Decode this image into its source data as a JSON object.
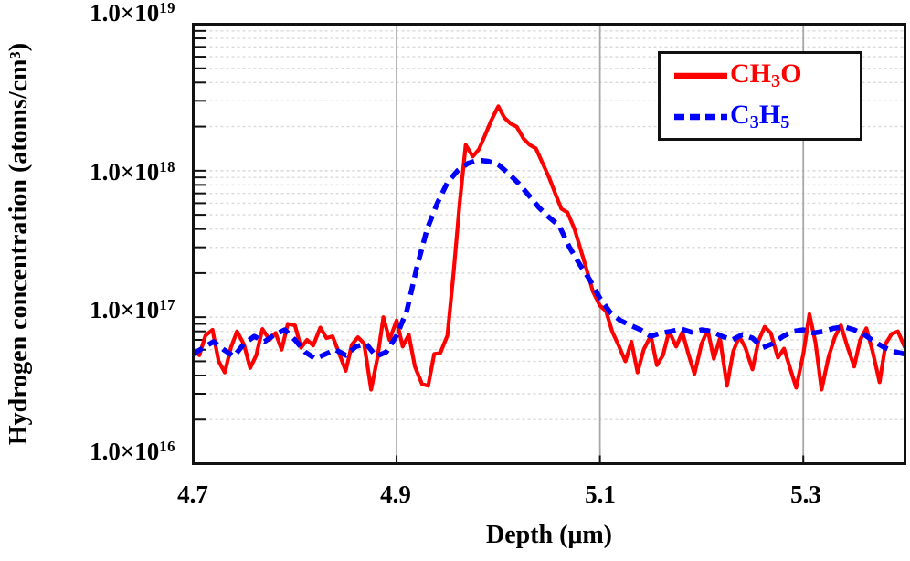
{
  "figure": {
    "type": "sims-depth-profile-chart",
    "background": "#ffffff",
    "y_axis": {
      "title": "Hydrogen concentration (atoms/cm³)",
      "scale": "log",
      "tick_labels": [
        {
          "mantissa": "1.0×10",
          "exp": "19"
        },
        {
          "mantissa": "1.0×10",
          "exp": "18"
        },
        {
          "mantissa": "1.0×10",
          "exp": "17"
        },
        {
          "mantissa": "1.0×10",
          "exp": "16"
        }
      ]
    },
    "x_axis": {
      "title": "Depth (μm)",
      "tick_labels": [
        "4.7",
        "4.9",
        "5.1",
        "5.3"
      ]
    },
    "legend": {
      "entries": [
        {
          "name": "CH3O",
          "segments": [
            {
              "t": "CH"
            },
            {
              "t": "3",
              "sub": true
            },
            {
              "t": "O"
            }
          ],
          "color": "#ff0000",
          "line_style": "solid"
        },
        {
          "name": "C3H5",
          "segments": [
            {
              "t": "C"
            },
            {
              "t": "3",
              "sub": true
            },
            {
              "t": "H"
            },
            {
              "t": "5",
              "sub": true
            }
          ],
          "color": "#0000ff",
          "line_style": "dashed"
        }
      ]
    },
    "colors": {
      "frame": "#111111",
      "grid_major": "#a8a8a8",
      "grid_minor": "#d9d9d9",
      "tick": "#111111"
    }
  },
  "chart_data": {
    "type": "line",
    "title": "",
    "xlabel": "Depth (μm)",
    "ylabel": "Hydrogen concentration (atoms/cm³)",
    "xscale": "linear",
    "yscale": "log",
    "xlim": [
      4.7,
      5.4
    ],
    "ylim": [
      1e+16,
      1e+19
    ],
    "x_major_ticks": [
      4.7,
      4.9,
      5.1,
      5.3
    ],
    "grid": true,
    "legend_position": "top-right",
    "series": [
      {
        "name": "CH3O",
        "display": "CH₃O",
        "color": "#ff0000",
        "line_style": "solid",
        "stroke_width": 4.2,
        "peak": {
          "x": 5.0,
          "y": 2.75e+18
        },
        "points": [
          [
            4.7,
            6e+16
          ],
          [
            4.706,
            5.5e+16
          ],
          [
            4.712,
            7.5e+16
          ],
          [
            4.719,
            8.2e+16
          ],
          [
            4.725,
            5e+16
          ],
          [
            4.731,
            4.2e+16
          ],
          [
            4.737,
            6.2e+16
          ],
          [
            4.743,
            8e+16
          ],
          [
            4.75,
            6.5e+16
          ],
          [
            4.756,
            4.5e+16
          ],
          [
            4.762,
            5.5e+16
          ],
          [
            4.768,
            8.3e+16
          ],
          [
            4.775,
            7e+16
          ],
          [
            4.781,
            7.8e+16
          ],
          [
            4.787,
            6e+16
          ],
          [
            4.793,
            9e+16
          ],
          [
            4.8,
            8.8e+16
          ],
          [
            4.806,
            6.2e+16
          ],
          [
            4.812,
            7e+16
          ],
          [
            4.818,
            6.4e+16
          ],
          [
            4.825,
            8.5e+16
          ],
          [
            4.831,
            7.2e+16
          ],
          [
            4.837,
            7.4e+16
          ],
          [
            4.843,
            5.8e+16
          ],
          [
            4.85,
            4.3e+16
          ],
          [
            4.856,
            6.5e+16
          ],
          [
            4.862,
            7.3e+16
          ],
          [
            4.868,
            6.6e+16
          ],
          [
            4.875,
            3.2e+16
          ],
          [
            4.881,
            5.2e+16
          ],
          [
            4.887,
            1e+17
          ],
          [
            4.893,
            7e+16
          ],
          [
            4.9,
            9.5e+16
          ],
          [
            4.906,
            6.3e+16
          ],
          [
            4.912,
            7.6e+16
          ],
          [
            4.918,
            4.6e+16
          ],
          [
            4.925,
            3.5e+16
          ],
          [
            4.931,
            3.4e+16
          ],
          [
            4.937,
            5.6e+16
          ],
          [
            4.943,
            5.7e+16
          ],
          [
            4.95,
            7.5e+16
          ],
          [
            4.956,
            2e+17
          ],
          [
            4.962,
            6e+17
          ],
          [
            4.968,
            1.5e+18
          ],
          [
            4.975,
            1.25e+18
          ],
          [
            4.981,
            1.4e+18
          ],
          [
            4.987,
            1.75e+18
          ],
          [
            4.993,
            2.2e+18
          ],
          [
            5.0,
            2.75e+18
          ],
          [
            5.006,
            2.3e+18
          ],
          [
            5.012,
            2.1e+18
          ],
          [
            5.018,
            2e+18
          ],
          [
            5.025,
            1.65e+18
          ],
          [
            5.031,
            1.5e+18
          ],
          [
            5.037,
            1.42e+18
          ],
          [
            5.043,
            1.15e+18
          ],
          [
            5.05,
            9e+17
          ],
          [
            5.056,
            7e+17
          ],
          [
            5.062,
            5.5e+17
          ],
          [
            5.068,
            5.2e+17
          ],
          [
            5.075,
            4e+17
          ],
          [
            5.081,
            2.9e+17
          ],
          [
            5.087,
            2.1e+17
          ],
          [
            5.093,
            1.5e+17
          ],
          [
            5.1,
            1.2e+17
          ],
          [
            5.106,
            1.1e+17
          ],
          [
            5.112,
            8e+16
          ],
          [
            5.118,
            6.5e+16
          ],
          [
            5.125,
            5e+16
          ],
          [
            5.131,
            6.8e+16
          ],
          [
            5.137,
            4.2e+16
          ],
          [
            5.143,
            6e+16
          ],
          [
            5.15,
            7.5e+16
          ],
          [
            5.156,
            4.7e+16
          ],
          [
            5.162,
            5.5e+16
          ],
          [
            5.168,
            8e+16
          ],
          [
            5.175,
            6.3e+16
          ],
          [
            5.181,
            7.9e+16
          ],
          [
            5.187,
            5.6e+16
          ],
          [
            5.193,
            4.1e+16
          ],
          [
            5.2,
            6.6e+16
          ],
          [
            5.206,
            8.2e+16
          ],
          [
            5.212,
            5.2e+16
          ],
          [
            5.218,
            7.2e+16
          ],
          [
            5.225,
            3.4e+16
          ],
          [
            5.231,
            5.8e+16
          ],
          [
            5.237,
            7.4e+16
          ],
          [
            5.243,
            6.2e+16
          ],
          [
            5.25,
            4.4e+16
          ],
          [
            5.256,
            6.9e+16
          ],
          [
            5.262,
            8.6e+16
          ],
          [
            5.268,
            7.8e+16
          ],
          [
            5.275,
            5.3e+16
          ],
          [
            5.281,
            6.1e+16
          ],
          [
            5.287,
            4.5e+16
          ],
          [
            5.293,
            3.3e+16
          ],
          [
            5.3,
            5.6e+16
          ],
          [
            5.306,
            1.05e+17
          ],
          [
            5.312,
            6.7e+16
          ],
          [
            5.318,
            3.2e+16
          ],
          [
            5.325,
            5.4e+16
          ],
          [
            5.331,
            7.3e+16
          ],
          [
            5.337,
            8.8e+16
          ],
          [
            5.343,
            6.4e+16
          ],
          [
            5.35,
            4.6e+16
          ],
          [
            5.356,
            7e+16
          ],
          [
            5.362,
            8.4e+16
          ],
          [
            5.368,
            5.9e+16
          ],
          [
            5.375,
            3.6e+16
          ],
          [
            5.381,
            6.6e+16
          ],
          [
            5.387,
            7.7e+16
          ],
          [
            5.393,
            8e+16
          ],
          [
            5.4,
            6.2e+16
          ]
        ]
      },
      {
        "name": "C3H5",
        "display": "C₃H₅",
        "color": "#0000ff",
        "line_style": "dashed",
        "stroke_width": 5.5,
        "peak": {
          "x": 4.98,
          "y": 1.18e+18
        },
        "points": [
          [
            4.7,
            5.6e+16
          ],
          [
            4.71,
            6.2e+16
          ],
          [
            4.72,
            6.8e+16
          ],
          [
            4.73,
            6e+16
          ],
          [
            4.74,
            5.4e+16
          ],
          [
            4.75,
            6.6e+16
          ],
          [
            4.76,
            7.4e+16
          ],
          [
            4.77,
            6.8e+16
          ],
          [
            4.78,
            7.6e+16
          ],
          [
            4.79,
            8.2e+16
          ],
          [
            4.8,
            7e+16
          ],
          [
            4.81,
            5.8e+16
          ],
          [
            4.82,
            5.2e+16
          ],
          [
            4.83,
            5.6e+16
          ],
          [
            4.84,
            6e+16
          ],
          [
            4.85,
            5.5e+16
          ],
          [
            4.86,
            6.3e+16
          ],
          [
            4.87,
            6.6e+16
          ],
          [
            4.88,
            5.4e+16
          ],
          [
            4.89,
            5.8e+16
          ],
          [
            4.9,
            7.5e+16
          ],
          [
            4.91,
            1.1e+17
          ],
          [
            4.92,
            2.2e+17
          ],
          [
            4.93,
            4e+17
          ],
          [
            4.94,
            6e+17
          ],
          [
            4.95,
            8.3e+17
          ],
          [
            4.96,
            1e+18
          ],
          [
            4.97,
            1.12e+18
          ],
          [
            4.98,
            1.18e+18
          ],
          [
            4.99,
            1.16e+18
          ],
          [
            5.0,
            1.1e+18
          ],
          [
            5.01,
            9.6e+17
          ],
          [
            5.02,
            8.2e+17
          ],
          [
            5.03,
            6.8e+17
          ],
          [
            5.04,
            5.6e+17
          ],
          [
            5.05,
            4.8e+17
          ],
          [
            5.06,
            4.2e+17
          ],
          [
            5.07,
            3e+17
          ],
          [
            5.08,
            2.3e+17
          ],
          [
            5.09,
            1.8e+17
          ],
          [
            5.1,
            1.35e+17
          ],
          [
            5.11,
            1.08e+17
          ],
          [
            5.12,
            9.5e+16
          ],
          [
            5.13,
            8.8e+16
          ],
          [
            5.14,
            8.2e+16
          ],
          [
            5.15,
            7.4e+16
          ],
          [
            5.16,
            7.8e+16
          ],
          [
            5.17,
            8e+16
          ],
          [
            5.18,
            8.3e+16
          ],
          [
            5.19,
            7.9e+16
          ],
          [
            5.2,
            8.2e+16
          ],
          [
            5.21,
            8e+16
          ],
          [
            5.22,
            7.4e+16
          ],
          [
            5.23,
            7e+16
          ],
          [
            5.24,
            7.6e+16
          ],
          [
            5.25,
            7.2e+16
          ],
          [
            5.26,
            6.2e+16
          ],
          [
            5.27,
            6.6e+16
          ],
          [
            5.28,
            7.4e+16
          ],
          [
            5.29,
            8e+16
          ],
          [
            5.3,
            8.2e+16
          ],
          [
            5.31,
            7.8e+16
          ],
          [
            5.32,
            8e+16
          ],
          [
            5.33,
            8.4e+16
          ],
          [
            5.34,
            8.6e+16
          ],
          [
            5.35,
            8.2e+16
          ],
          [
            5.36,
            7.6e+16
          ],
          [
            5.37,
            6.8e+16
          ],
          [
            5.38,
            6.2e+16
          ],
          [
            5.39,
            5.8e+16
          ],
          [
            5.4,
            5.6e+16
          ]
        ]
      }
    ]
  }
}
